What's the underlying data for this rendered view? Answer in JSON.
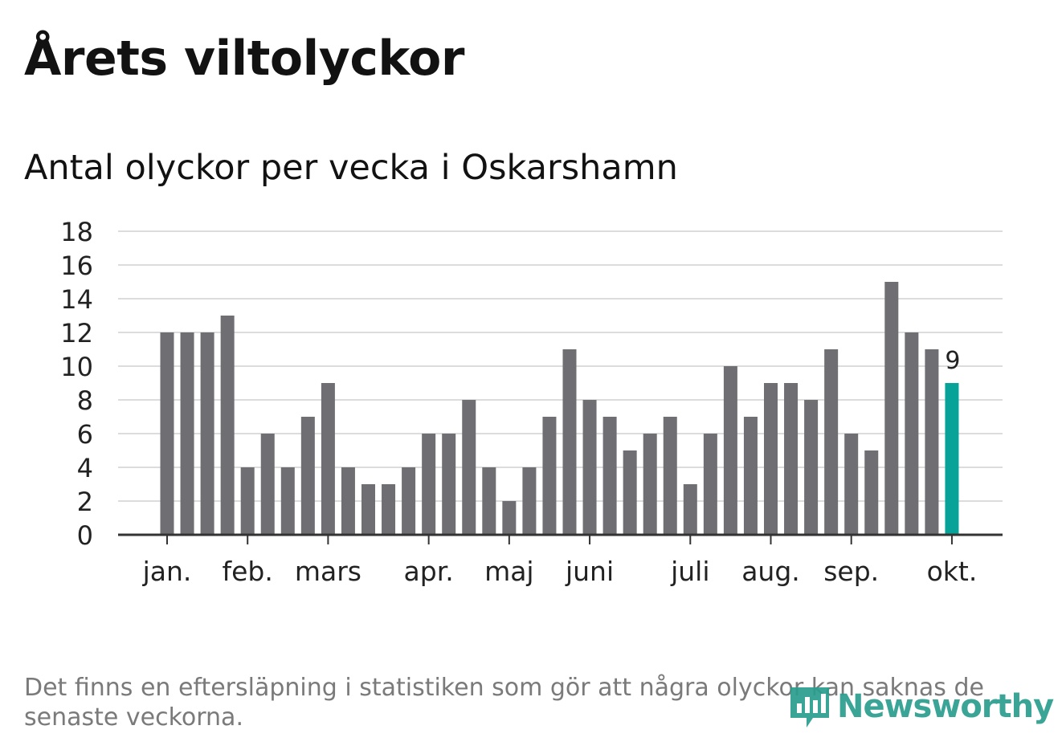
{
  "title": "Årets viltolyckor",
  "subtitle": "Antal olyckor per vecka i Oskarshamn",
  "footnote": "Det finns en eftersläpning i statistiken som gör att några olyckor kan saknas de senaste veckorna.",
  "logo_text": "Newsworthy",
  "colors": {
    "bar": "#6f6e73",
    "highlight": "#08a398",
    "grid": "#dcdcdc",
    "axis": "#333333",
    "text": "#222222",
    "brand": "#2a9d8f"
  },
  "chart_data": {
    "type": "bar",
    "title": "Antal olyckor per vecka i Oskarshamn",
    "xlabel": "",
    "ylabel": "",
    "ylim": [
      0,
      18
    ],
    "yticks": [
      0,
      2,
      4,
      6,
      8,
      10,
      12,
      14,
      16,
      18
    ],
    "grid": true,
    "values": [
      12,
      12,
      12,
      13,
      4,
      6,
      4,
      7,
      9,
      4,
      3,
      3,
      4,
      6,
      6,
      8,
      4,
      2,
      4,
      7,
      11,
      8,
      7,
      5,
      6,
      7,
      3,
      6,
      10,
      7,
      9,
      9,
      8,
      11,
      6,
      5,
      15,
      12,
      11,
      9
    ],
    "highlight_index": 39,
    "highlight_label": "9",
    "month_ticks": [
      {
        "label": "jan.",
        "at_bar": 0
      },
      {
        "label": "feb.",
        "at_bar": 4
      },
      {
        "label": "mars",
        "at_bar": 8
      },
      {
        "label": "apr.",
        "at_bar": 13
      },
      {
        "label": "maj",
        "at_bar": 17
      },
      {
        "label": "juni",
        "at_bar": 21
      },
      {
        "label": "juli",
        "at_bar": 26
      },
      {
        "label": "aug.",
        "at_bar": 30
      },
      {
        "label": "sep.",
        "at_bar": 34
      },
      {
        "label": "okt.",
        "at_bar": 39
      }
    ]
  }
}
